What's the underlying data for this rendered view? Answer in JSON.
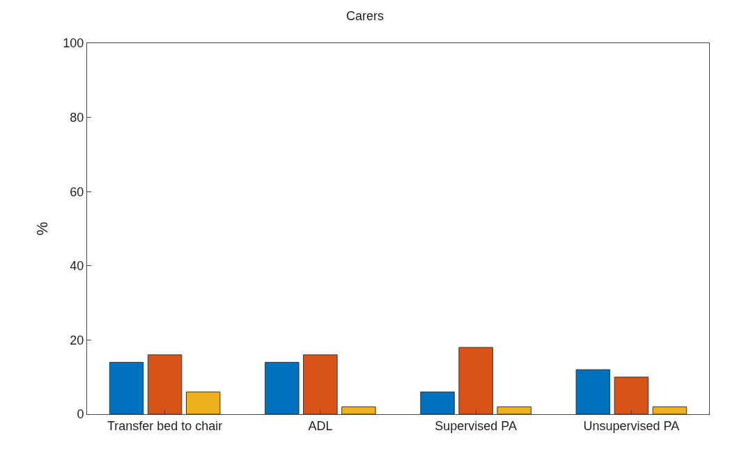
{
  "chart_data": {
    "type": "bar",
    "title": "Carers",
    "ylabel": "%",
    "categories": [
      "Transfer bed to chair",
      "ADL",
      "Supervised PA",
      "Unsupervised PA"
    ],
    "series": [
      {
        "color": "#0072bd",
        "values": [
          14,
          14,
          6,
          12
        ]
      },
      {
        "color": "#d95319",
        "values": [
          16,
          16,
          18,
          10
        ]
      },
      {
        "color": "#edb120",
        "values": [
          6,
          2,
          2,
          2
        ]
      }
    ],
    "ylim": [
      0,
      100
    ],
    "yticks": [
      0,
      20,
      40,
      60,
      80,
      100
    ]
  }
}
